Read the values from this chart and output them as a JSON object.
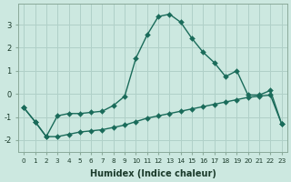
{
  "xlabel": "Humidex (Indice chaleur)",
  "background_color": "#cce8e0",
  "grid_color": "#b0d0c8",
  "line_color": "#1a6b5a",
  "x": [
    0,
    1,
    2,
    3,
    4,
    5,
    6,
    7,
    8,
    9,
    10,
    11,
    12,
    13,
    14,
    15,
    16,
    17,
    18,
    19,
    20,
    21,
    22,
    23
  ],
  "y_upper": [
    -0.6,
    -1.2,
    -1.85,
    -0.95,
    -0.85,
    -0.85,
    -0.8,
    -0.75,
    -0.5,
    -0.1,
    1.55,
    2.55,
    3.35,
    3.45,
    3.1,
    2.4,
    1.8,
    1.35,
    0.75,
    1.0,
    -0.05,
    -0.05,
    0.15,
    -1.3
  ],
  "y_lower": [
    -0.6,
    -1.2,
    -1.85,
    -1.85,
    -1.75,
    -1.65,
    -1.6,
    -1.55,
    -1.45,
    -1.35,
    -1.2,
    -1.05,
    -0.95,
    -0.85,
    -0.75,
    -0.65,
    -0.55,
    -0.45,
    -0.35,
    -0.25,
    -0.15,
    -0.1,
    -0.05,
    -1.3
  ],
  "ylim": [
    -2.5,
    3.9
  ],
  "xlim": [
    -0.5,
    23.5
  ],
  "xticks": [
    0,
    1,
    2,
    3,
    4,
    5,
    6,
    7,
    8,
    9,
    10,
    11,
    12,
    13,
    14,
    15,
    16,
    17,
    18,
    19,
    20,
    21,
    22,
    23
  ],
  "yticks": [
    -2,
    -1,
    0,
    1,
    2,
    3
  ],
  "markersize": 3,
  "linewidth": 1.0
}
